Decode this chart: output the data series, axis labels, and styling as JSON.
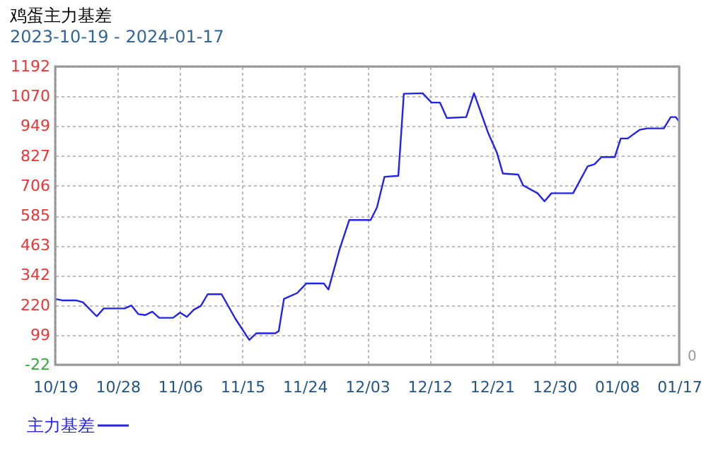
{
  "chart_data": {
    "type": "line",
    "title": "鸡蛋主力基差",
    "subtitle": "2023-10-19 - 2024-01-17",
    "annotations": [
      "0"
    ],
    "x": [
      "2023-10-19",
      "2023-10-20",
      "2023-10-22",
      "2023-10-23",
      "2023-10-25",
      "2023-10-26",
      "2023-10-29",
      "2023-10-30",
      "2023-10-31",
      "2023-11-01",
      "2023-11-02",
      "2023-11-03",
      "2023-11-05",
      "2023-11-06",
      "2023-11-07",
      "2023-11-08",
      "2023-11-09",
      "2023-11-10",
      "2023-11-12",
      "2023-11-14",
      "2023-11-16",
      "2023-11-17",
      "2023-11-19T18:00",
      "2023-11-20T06:00",
      "2023-11-21",
      "2023-11-22T22:00",
      "2023-11-24T06:00",
      "2023-11-26T18:00",
      "2023-11-27T10:00",
      "2023-11-29",
      "2023-11-30T10:00",
      "2023-12-03T12:00",
      "2023-12-04T10:00",
      "2023-12-05T12:00",
      "2023-12-07T12:00",
      "2023-12-08T07:00",
      "2023-12-11",
      "2023-12-12T07:00",
      "2023-12-13T12:00",
      "2023-12-14T12:00",
      "2023-12-17T07:00",
      "2023-12-18T10:00",
      "2023-12-20T10:00",
      "2023-12-21T17:00",
      "2023-12-22T14:00",
      "2023-12-24T19:00",
      "2023-12-25T12:00",
      "2023-12-27T14:00",
      "2023-12-28T14:00",
      "2023-12-29T14:00",
      "2024-01-01T17:00",
      "2024-01-03T19:00",
      "2024-01-04T19:00",
      "2024-01-05T19:00",
      "2024-01-07T17:00",
      "2024-01-08T14:00",
      "2024-01-09T14:00",
      "2024-01-11T07:00",
      "2024-01-12T10:00",
      "2024-01-14T19:00",
      "2024-01-15T19:00",
      "2024-01-16T12:00",
      "2024-01-17"
    ],
    "series": [
      {
        "name": "主力基差",
        "color": "#2222ee",
        "values": [
          246,
          240,
          240,
          232,
          175,
          207,
          207,
          219,
          184,
          180,
          194,
          169,
          169,
          190,
          173,
          202,
          217,
          265,
          265,
          165,
          79,
          106,
          106,
          115,
          246,
          270,
          309,
          309,
          284,
          446,
          567,
          567,
          618,
          743,
          747,
          1081,
          1083,
          1045,
          1045,
          982,
          986,
          1083,
          924,
          842,
          756,
          752,
          708,
          676,
          643,
          676,
          676,
          785,
          794,
          823,
          823,
          899,
          899,
          934,
          940,
          940,
          986,
          986,
          968
        ]
      }
    ],
    "xlim": [
      "2023-10-19",
      "2024-01-17"
    ],
    "xticks": [
      {
        "value": "2023-10-19",
        "label": "10/19"
      },
      {
        "value": "2023-10-28",
        "label": "10/28"
      },
      {
        "value": "2023-11-06",
        "label": "11/06"
      },
      {
        "value": "2023-11-15",
        "label": "11/15"
      },
      {
        "value": "2023-11-24",
        "label": "11/24"
      },
      {
        "value": "2023-12-03",
        "label": "12/03"
      },
      {
        "value": "2023-12-12",
        "label": "12/12"
      },
      {
        "value": "2023-12-21",
        "label": "12/21"
      },
      {
        "value": "2023-12-30",
        "label": "12/30"
      },
      {
        "value": "2024-01-08",
        "label": "01/08"
      },
      {
        "value": "2024-01-17",
        "label": "01/17"
      }
    ],
    "ylim": [
      -22,
      1192
    ],
    "yticks": [
      -22,
      99,
      220,
      342,
      463,
      585,
      706,
      827,
      949,
      1070,
      1192
    ],
    "grid": true,
    "legend": "bottom left",
    "marker": "none",
    "line_style": "solid"
  }
}
